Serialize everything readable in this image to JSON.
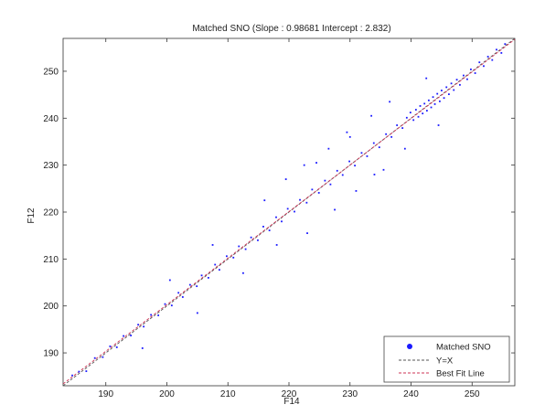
{
  "chart_data": {
    "type": "scatter",
    "title": "Matched SNO (Slope : 0.98681 Intercept : 2.832)",
    "xlabel": "F14",
    "ylabel": "F12",
    "xlim": [
      183,
      257
    ],
    "ylim": [
      183,
      257
    ],
    "xticks": [
      190,
      200,
      210,
      220,
      230,
      240,
      250
    ],
    "yticks": [
      190,
      200,
      210,
      220,
      230,
      240,
      250
    ],
    "grid": false,
    "legend_placement": "bottom-right",
    "series": [
      {
        "name": "Matched SNO",
        "kind": "points",
        "color": "#1a1aff",
        "points": [
          [
            184.5,
            185.2
          ],
          [
            185.6,
            186.0
          ],
          [
            186.8,
            186.1
          ],
          [
            188.2,
            188.9
          ],
          [
            189.5,
            189.1
          ],
          [
            190.7,
            191.4
          ],
          [
            191.8,
            191.2
          ],
          [
            192.9,
            193.6
          ],
          [
            194.1,
            193.7
          ],
          [
            195.3,
            196.0
          ],
          [
            196.2,
            195.6
          ],
          [
            197.4,
            198.1
          ],
          [
            198.6,
            198.0
          ],
          [
            199.7,
            200.4
          ],
          [
            200.8,
            200.1
          ],
          [
            201.9,
            202.8
          ],
          [
            202.6,
            201.9
          ],
          [
            203.8,
            204.5
          ],
          [
            204.9,
            204.2
          ],
          [
            205.7,
            206.5
          ],
          [
            206.8,
            206.0
          ],
          [
            207.9,
            208.8
          ],
          [
            208.6,
            207.7
          ],
          [
            209.8,
            210.6
          ],
          [
            210.9,
            210.3
          ],
          [
            211.8,
            212.7
          ],
          [
            212.9,
            212.1
          ],
          [
            213.8,
            214.6
          ],
          [
            214.9,
            214.0
          ],
          [
            215.8,
            216.9
          ],
          [
            216.8,
            216.1
          ],
          [
            217.9,
            218.9
          ],
          [
            218.8,
            218.0
          ],
          [
            219.8,
            220.7
          ],
          [
            220.9,
            220.1
          ],
          [
            221.8,
            222.6
          ],
          [
            222.9,
            222.0
          ],
          [
            223.8,
            224.8
          ],
          [
            224.9,
            224.1
          ],
          [
            225.9,
            226.7
          ],
          [
            226.8,
            225.9
          ],
          [
            227.9,
            228.8
          ],
          [
            228.8,
            227.9
          ],
          [
            229.9,
            230.8
          ],
          [
            230.8,
            229.9
          ],
          [
            231.9,
            232.6
          ],
          [
            232.8,
            231.9
          ],
          [
            233.9,
            234.7
          ],
          [
            234.8,
            233.8
          ],
          [
            235.9,
            236.6
          ],
          [
            236.8,
            236.0
          ],
          [
            237.7,
            238.5
          ],
          [
            238.6,
            237.9
          ],
          [
            239.3,
            240.1
          ],
          [
            239.9,
            241.2
          ],
          [
            240.4,
            239.6
          ],
          [
            240.8,
            241.8
          ],
          [
            241.2,
            240.3
          ],
          [
            241.5,
            242.6
          ],
          [
            241.9,
            241.0
          ],
          [
            242.2,
            243.1
          ],
          [
            242.6,
            241.6
          ],
          [
            242.9,
            243.8
          ],
          [
            243.3,
            242.3
          ],
          [
            243.6,
            244.5
          ],
          [
            243.9,
            243.0
          ],
          [
            244.3,
            245.2
          ],
          [
            244.7,
            243.6
          ],
          [
            245.0,
            245.9
          ],
          [
            245.4,
            244.3
          ],
          [
            245.8,
            246.6
          ],
          [
            246.2,
            245.1
          ],
          [
            246.6,
            247.4
          ],
          [
            247.0,
            246.0
          ],
          [
            247.5,
            248.2
          ],
          [
            248.0,
            247.1
          ],
          [
            248.6,
            249.1
          ],
          [
            249.2,
            248.3
          ],
          [
            249.8,
            250.4
          ],
          [
            250.5,
            249.6
          ],
          [
            251.2,
            251.9
          ],
          [
            251.9,
            251.1
          ],
          [
            252.6,
            253.1
          ],
          [
            253.3,
            252.4
          ],
          [
            254.0,
            254.6
          ],
          [
            254.8,
            253.9
          ],
          [
            255.4,
            255.8
          ],
          [
            216.0,
            222.5
          ],
          [
            219.5,
            227.0
          ],
          [
            222.5,
            230.0
          ],
          [
            226.5,
            233.5
          ],
          [
            229.5,
            237.0
          ],
          [
            233.5,
            240.5
          ],
          [
            236.5,
            243.5
          ],
          [
            231.0,
            224.5
          ],
          [
            227.5,
            220.5
          ],
          [
            223.0,
            215.5
          ],
          [
            235.5,
            229.0
          ],
          [
            212.5,
            207.0
          ],
          [
            207.5,
            213.0
          ],
          [
            205.0,
            198.5
          ],
          [
            242.5,
            248.5
          ],
          [
            244.5,
            238.5
          ],
          [
            239.0,
            233.5
          ],
          [
            200.5,
            205.5
          ],
          [
            196.0,
            191.0
          ],
          [
            230.0,
            236.0
          ],
          [
            234.0,
            228.0
          ],
          [
            218.0,
            213.0
          ],
          [
            224.5,
            230.5
          ]
        ]
      },
      {
        "name": "Y=X",
        "kind": "line",
        "color": "#555555",
        "dash": "dashed"
      },
      {
        "name": "Best Fit Line",
        "kind": "line",
        "color": "#cc3355",
        "dash": "dashed"
      }
    ]
  }
}
